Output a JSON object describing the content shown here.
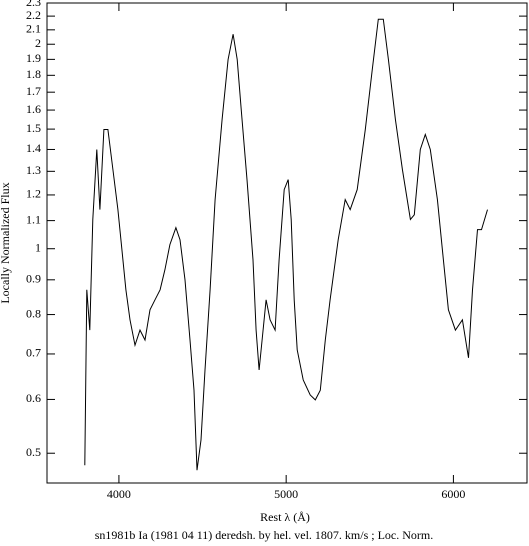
{
  "chart_data": {
    "type": "line",
    "caption": "sn1981b Ia (1981 04 11) deredsh. by hel. vel.  1807. km/s ;  Loc. Norm.",
    "x_label": "Rest λ (Å)",
    "y_label": "Locally Normalized Flux",
    "log_y": true,
    "color": "#000000",
    "xlim": [
      3570,
      6440
    ],
    "ylim": [
      0.452,
      2.3
    ],
    "xticks": [
      4000,
      5000,
      6000
    ],
    "yticks": [
      0.5,
      0.6,
      0.7,
      0.8,
      0.9,
      1,
      1.1,
      1.2,
      1.3,
      1.4,
      1.5,
      1.6,
      1.7,
      1.8,
      1.9,
      2,
      2.1,
      2.2,
      2.3
    ],
    "x": [
      3796,
      3808,
      3826,
      3844,
      3868,
      3886,
      3910,
      3934,
      3964,
      3994,
      4018,
      4042,
      4066,
      4096,
      4126,
      4156,
      4186,
      4216,
      4246,
      4275,
      4305,
      4341,
      4365,
      4395,
      4425,
      4449,
      4467,
      4491,
      4515,
      4545,
      4575,
      4617,
      4653,
      4683,
      4707,
      4731,
      4766,
      4802,
      4820,
      4838,
      4856,
      4880,
      4904,
      4934,
      4958,
      4988,
      5012,
      5030,
      5048,
      5066,
      5102,
      5144,
      5174,
      5204,
      5234,
      5263,
      5311,
      5353,
      5383,
      5425,
      5473,
      5515,
      5551,
      5581,
      5611,
      5653,
      5695,
      5743,
      5766,
      5802,
      5832,
      5862,
      5904,
      5940,
      5970,
      6012,
      6054,
      6090,
      6114,
      6144,
      6168,
      6204
    ],
    "values": [
      0.48,
      0.87,
      0.759,
      1.104,
      1.4,
      1.142,
      1.498,
      1.498,
      1.308,
      1.142,
      0.997,
      0.87,
      0.786,
      0.721,
      0.759,
      0.734,
      0.813,
      0.841,
      0.87,
      0.931,
      1.014,
      1.074,
      1.031,
      0.9,
      0.734,
      0.619,
      0.472,
      0.523,
      0.663,
      0.87,
      1.181,
      1.55,
      1.9,
      2.069,
      1.9,
      1.604,
      1.264,
      0.963,
      0.759,
      0.663,
      0.734,
      0.841,
      0.786,
      0.759,
      0.963,
      1.222,
      1.264,
      1.104,
      0.841,
      0.71,
      0.641,
      0.609,
      0.599,
      0.619,
      0.734,
      0.841,
      1.031,
      1.181,
      1.142,
      1.222,
      1.498,
      1.837,
      2.177,
      2.177,
      1.9,
      1.55,
      1.308,
      1.104,
      1.122,
      1.4,
      1.473,
      1.4,
      1.181,
      0.963,
      0.813,
      0.759,
      0.786,
      0.691,
      0.87,
      1.067,
      1.067,
      1.142
    ]
  }
}
